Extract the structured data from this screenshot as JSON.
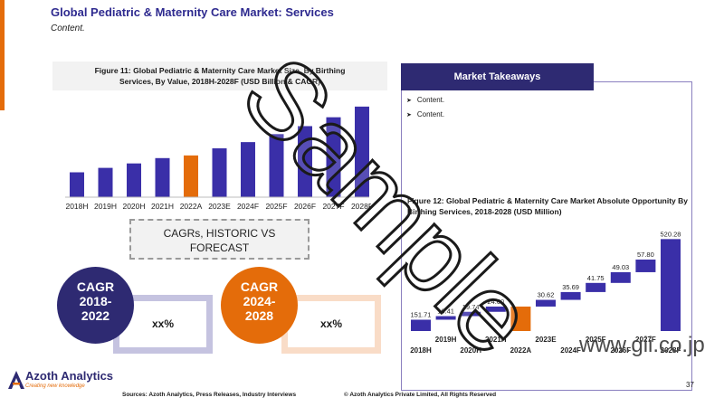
{
  "header": {
    "title": "Global Pediatric & Maternity Care Market: Services",
    "subtitle": "Content."
  },
  "left_figure": {
    "title_line1": "Figure 11: Global Pediatric & Maternity Care Market Size, By Birthing",
    "title_line2": "Services, By Value, 2018H-2028F (USD Billion & CAGR)"
  },
  "cagr_box": {
    "line1": "CAGRs, HISTORIC VS",
    "line2": "FORECAST"
  },
  "cagr_historic": {
    "label": "CAGR",
    "period_line1": "2018-",
    "period_line2": "2022",
    "value": "xx%"
  },
  "cagr_forecast": {
    "label": "CAGR",
    "period_line1": "2024-",
    "period_line2": "2028",
    "value": "xx%"
  },
  "takeaways": {
    "header": "Market Takeaways",
    "items": [
      "Content.",
      "Content."
    ]
  },
  "right_figure": {
    "title": "Figure 12: Global Pediatric & Maternity Care Market Absolute Opportunity By Birthing Services, 2018-2028 (USD Million)"
  },
  "footer": {
    "logo_name": "Azoth Analytics",
    "logo_tagline": "Creating new knowledge",
    "sources": "Sources: Azoth Analytics, Press Releases, Industry Interviews",
    "copyright": "© Azoth Analytics Private Limited, All Rights Reserved",
    "page": "37",
    "watermark_url": "www.gii.co.jp",
    "watermark_sample": "Sample"
  },
  "colors": {
    "primary": "#3a2fa8",
    "highlight": "#e46c0a",
    "navy": "#2e2a72"
  },
  "chart_data": [
    {
      "type": "bar",
      "title": "Figure 11: Global Pediatric & Maternity Care Market Size, By Birthing Services, By Value, 2018H-2028F (USD Billion & CAGR)",
      "categories": [
        "2018H",
        "2019H",
        "2020H",
        "2021H",
        "2022A",
        "2023E",
        "2024F",
        "2025F",
        "2026F",
        "2027F",
        "2028F"
      ],
      "values": [
        28,
        33,
        38,
        44,
        47,
        55,
        62,
        71,
        80,
        90,
        102
      ],
      "highlight_category": "2022A",
      "xlabel": "",
      "ylabel": ""
    },
    {
      "type": "waterfall",
      "title": "Figure 12: Global Pediatric & Maternity Care Market Absolute Opportunity By Birthing Services, 2018-2028 (USD Million)",
      "categories": [
        "2018H",
        "2019H",
        "2020H",
        "2021H",
        "2022A",
        "2023E",
        "2024F",
        "2025F",
        "2026F",
        "2027F",
        "2028F"
      ],
      "values": [
        151.71,
        16.41,
        19.74,
        24.0,
        0,
        30.62,
        35.69,
        41.75,
        49.03,
        57.8,
        520.28
      ],
      "value_labels": [
        "151.71",
        "16.41",
        "19.74",
        "24.00",
        "",
        "30.62",
        "35.69",
        "41.75",
        "49.03",
        "57.80",
        "520.28"
      ],
      "total_bars": [
        "2018H",
        "2028F"
      ],
      "highlight_category": "2022A",
      "highlight_start": 151.71,
      "highlight_end": 211.86
    }
  ]
}
